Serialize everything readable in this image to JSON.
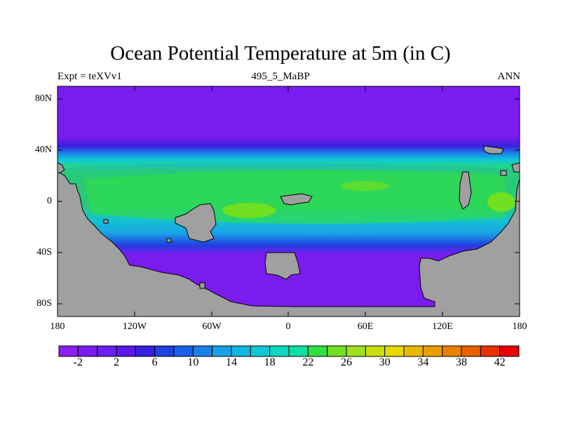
{
  "title": "Ocean Potential Temperature at 5m (in C)",
  "subtitle": {
    "left": "Expt = teXVv1",
    "center": "495_5_MaBP",
    "right": "ANN"
  },
  "map": {
    "projection": "cylindrical equidistant",
    "lon_range": [
      -180,
      180
    ],
    "lat_range": [
      -90,
      90
    ],
    "land_color": "#a0a0a0",
    "y_ticks": [
      "80N",
      "40N",
      "0",
      "40S",
      "80S"
    ],
    "x_ticks": [
      "180",
      "120W",
      "60W",
      "0",
      "60E",
      "120E",
      "180"
    ]
  },
  "colorbar": {
    "colors": [
      "#8b1ff0",
      "#7a1cf0",
      "#6a1ef0",
      "#5a18e8",
      "#3a20e0",
      "#2040e0",
      "#1a60e8",
      "#1a80e8",
      "#1aa0e8",
      "#10b8e0",
      "#10c8d8",
      "#10d8c0",
      "#10e0a0",
      "#30e040",
      "#70e020",
      "#a0e020",
      "#c8e010",
      "#e8d800",
      "#e8b800",
      "#e8a000",
      "#e88000",
      "#e86000",
      "#e83000",
      "#e80000"
    ],
    "labels": [
      "-2",
      "2",
      "6",
      "10",
      "14",
      "18",
      "22",
      "26",
      "30",
      "34",
      "38",
      "42"
    ]
  }
}
